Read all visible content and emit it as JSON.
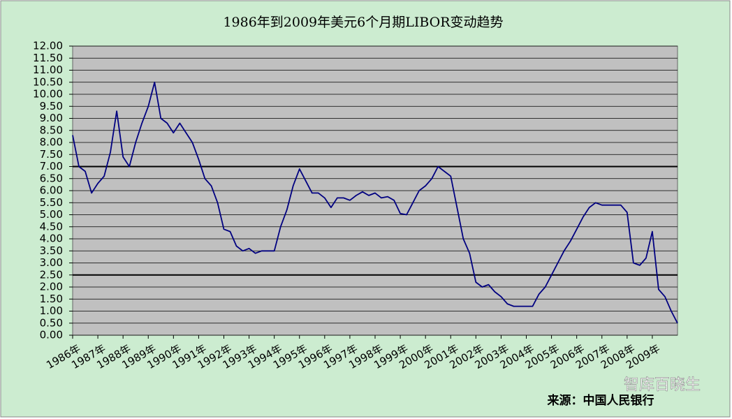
{
  "chart_data": {
    "type": "line",
    "title": "1986年到2009年美元6个月期LIBOR变动趋势",
    "source": "来源：中国人民银行",
    "watermark": "智库百晓生",
    "categories": [
      "1986年",
      null,
      null,
      null,
      "1987年",
      null,
      null,
      null,
      "1988年",
      null,
      null,
      null,
      "1989年",
      null,
      null,
      null,
      "1990年",
      null,
      null,
      null,
      "1991年",
      null,
      null,
      null,
      "1992年",
      null,
      null,
      null,
      "1993年",
      null,
      null,
      null,
      "1994年",
      null,
      null,
      null,
      "1995年",
      null,
      null,
      null,
      "1996年",
      null,
      null,
      null,
      "1997年",
      null,
      null,
      null,
      "1998年",
      null,
      null,
      null,
      "1999年",
      null,
      null,
      null,
      "2000年",
      null,
      null,
      null,
      "2001年",
      null,
      null,
      null,
      "2002年",
      null,
      null,
      null,
      "2003年",
      null,
      null,
      null,
      "2004年",
      null,
      null,
      null,
      "2005年",
      null,
      null,
      null,
      "2006年",
      null,
      null,
      null,
      "2007年",
      null,
      null,
      null,
      "2008年",
      null,
      null,
      null,
      "2009年",
      null,
      null,
      null,
      null
    ],
    "values": [
      8.3,
      7.0,
      6.8,
      5.9,
      6.3,
      6.6,
      7.6,
      9.3,
      7.4,
      7.0,
      8.0,
      8.8,
      9.5,
      10.5,
      9.0,
      8.8,
      8.4,
      8.8,
      8.4,
      8.0,
      7.3,
      6.5,
      6.2,
      5.5,
      4.4,
      4.3,
      3.7,
      3.5,
      3.6,
      3.4,
      3.5,
      3.5,
      3.5,
      4.5,
      5.2,
      6.2,
      6.9,
      6.4,
      5.9,
      5.9,
      5.7,
      5.3,
      5.7,
      5.7,
      5.6,
      5.8,
      5.95,
      5.8,
      5.9,
      5.7,
      5.75,
      5.6,
      5.05,
      5.0,
      5.5,
      6.0,
      6.2,
      6.5,
      7.0,
      6.8,
      6.6,
      5.3,
      4.0,
      3.4,
      2.2,
      2.0,
      2.1,
      1.8,
      1.6,
      1.3,
      1.2,
      1.2,
      1.2,
      1.2,
      1.7,
      2.0,
      2.5,
      3.0,
      3.5,
      3.9,
      4.4,
      4.9,
      5.3,
      5.5,
      5.4,
      5.4,
      5.4,
      5.4,
      5.1,
      3.0,
      2.9,
      3.2,
      4.3,
      1.9,
      1.6,
      1.0,
      0.5
    ],
    "color": "#000080",
    "ylim": [
      0,
      12
    ],
    "yticks": [
      {
        "value": 0,
        "label": "0.00"
      },
      {
        "value": 0.5,
        "label": "0.50"
      },
      {
        "value": 1,
        "label": "1.00"
      },
      {
        "value": 1.5,
        "label": "1.50"
      },
      {
        "value": 2,
        "label": "2.00"
      },
      {
        "value": 2.5,
        "label": "2.50"
      },
      {
        "value": 3,
        "label": "3.00"
      },
      {
        "value": 3.5,
        "label": "3.50"
      },
      {
        "value": 4,
        "label": "4.00"
      },
      {
        "value": 4.5,
        "label": "4.50"
      },
      {
        "value": 5,
        "label": "5.00"
      },
      {
        "value": 5.5,
        "label": "5.50"
      },
      {
        "value": 6,
        "label": "6.00"
      },
      {
        "value": 6.5,
        "label": "6.50"
      },
      {
        "value": 7,
        "label": "7.00"
      },
      {
        "value": 7.5,
        "label": "7.50"
      },
      {
        "value": 8,
        "label": "8.00"
      },
      {
        "value": 8.5,
        "label": "8.50"
      },
      {
        "value": 9,
        "label": "9.00"
      },
      {
        "value": 9.5,
        "label": "9.50"
      },
      {
        "value": 10,
        "label": "10.00"
      },
      {
        "value": 10.5,
        "label": "10.50"
      },
      {
        "value": 11,
        "label": "11.00"
      },
      {
        "value": 11.5,
        "label": "11.50"
      },
      {
        "value": 12,
        "label": "12.00"
      }
    ],
    "reference_lines": [
      7,
      2.5
    ],
    "grid": true
  }
}
